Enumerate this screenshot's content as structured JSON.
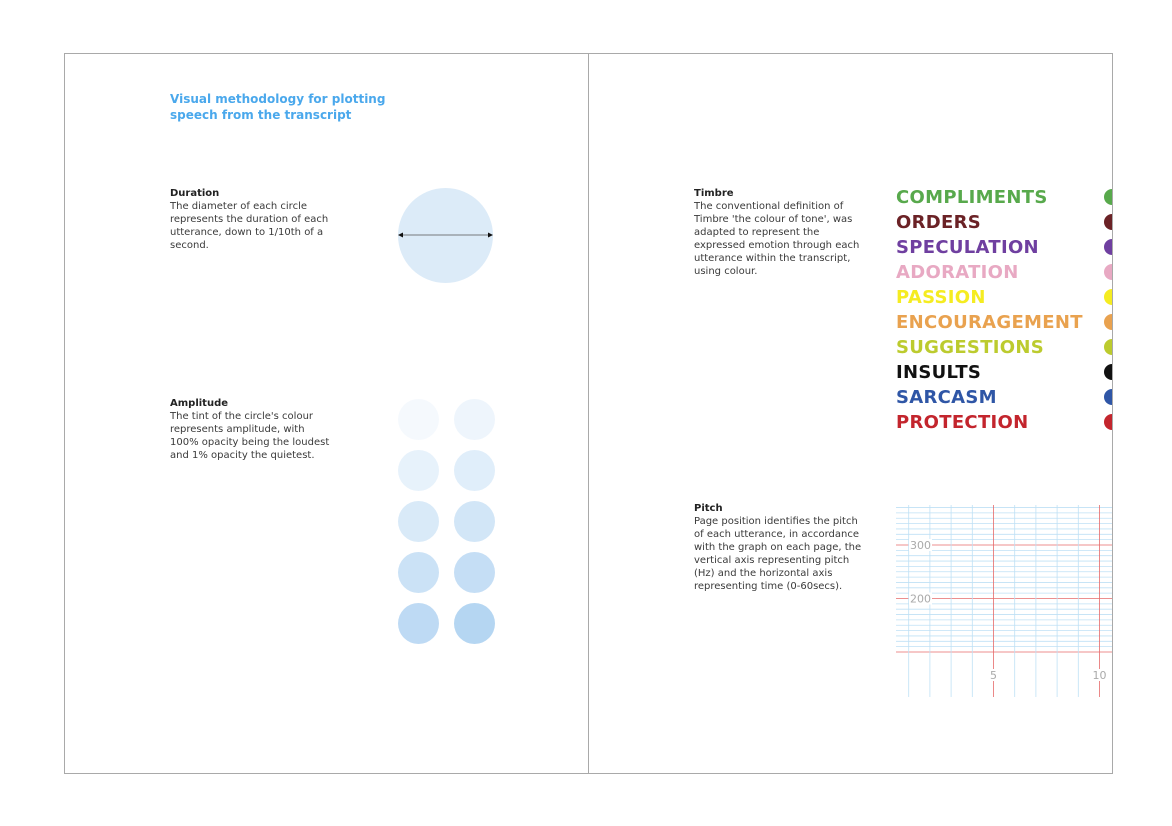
{
  "left_page": {
    "title": "Visual methodology for plotting speech from the transcript",
    "duration": {
      "heading": "Duration",
      "body": "The diameter of each circle represents the duration of each utterance, down to 1/10th of a second.",
      "circle_color": "#dcebf8"
    },
    "amplitude": {
      "heading": "Amplitude",
      "body": "The tint of the circle's colour represents amplitude, with 100% opacity being the loudest and 1% opacity the quietest.",
      "circle_color": "#a9cff0",
      "opacity_levels": [
        0.12,
        0.2,
        0.28,
        0.36,
        0.44,
        0.52,
        0.6,
        0.68,
        0.76,
        0.86
      ]
    }
  },
  "right_page": {
    "timbre": {
      "heading": "Timbre",
      "body": "The conventional definition of Timbre 'the colour of tone', was adapted to represent the expressed emotion through each utterance within the transcript, using colour.",
      "categories": [
        {
          "label": "COMPLIMENTS",
          "color": "#58a94c"
        },
        {
          "label": "ORDERS",
          "color": "#6b2226"
        },
        {
          "label": "SPECULATION",
          "color": "#6f3fa0"
        },
        {
          "label": "ADORATION",
          "color": "#e8a9c3"
        },
        {
          "label": "PASSION",
          "color": "#f5ec21"
        },
        {
          "label": "ENCOURAGEMENT",
          "color": "#e9a24f"
        },
        {
          "label": "SUGGESTIONS",
          "color": "#bccb2e"
        },
        {
          "label": "INSULTS",
          "color": "#111111"
        },
        {
          "label": "SARCASM",
          "color": "#2f56a6"
        },
        {
          "label": "PROTECTION",
          "color": "#c3252d"
        }
      ]
    },
    "pitch": {
      "heading": "Pitch",
      "body": "Page position identifies the pitch of each utterance, in accordance with the graph on each page, the vertical axis representing pitch (Hz) and the horizontal axis representing time (0-60secs).",
      "y_ticks": [
        "300",
        "200"
      ],
      "x_ticks": [
        "5",
        "10"
      ],
      "major_color": "#e66a6a",
      "minor_color": "#bfe0f5"
    }
  }
}
